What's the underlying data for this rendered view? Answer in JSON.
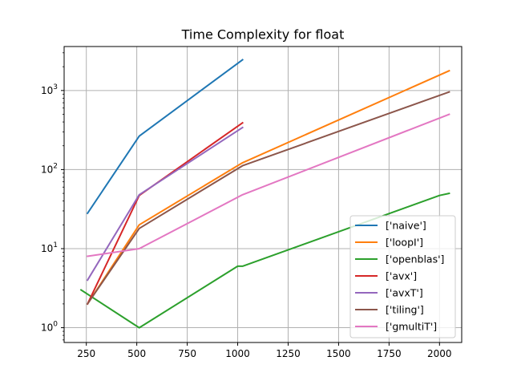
{
  "chart_data": {
    "type": "line",
    "title": "Time Complexity for float",
    "xlabel": "",
    "ylabel": "",
    "xlim": [
      140,
      2110
    ],
    "ylim": [
      0.65,
      3600
    ],
    "yscale": "log",
    "grid": true,
    "legend_position": "lower-right",
    "x_ticks": [
      250,
      500,
      750,
      1000,
      1250,
      1500,
      1750,
      2000
    ],
    "x_tick_labels": [
      "250",
      "500",
      "750",
      "1000",
      "1250",
      "1500",
      "1750",
      "2000"
    ],
    "y_ticks": [
      1,
      10,
      100,
      1000
    ],
    "series": [
      {
        "name": "['naive']",
        "color": "#1f77b4",
        "points": [
          [
            256,
            28
          ],
          [
            512,
            265
          ],
          [
            1024,
            2450
          ]
        ]
      },
      {
        "name": "['loopI']",
        "color": "#ff7f0e",
        "points": [
          [
            256,
            2
          ],
          [
            512,
            20
          ],
          [
            1024,
            122
          ],
          [
            2048,
            1780
          ]
        ]
      },
      {
        "name": "['openblas']",
        "color": "#2ca02c",
        "points": [
          [
            224,
            3
          ],
          [
            512,
            1
          ],
          [
            1000,
            6
          ],
          [
            1024,
            6
          ],
          [
            2000,
            47
          ],
          [
            2048,
            50
          ]
        ]
      },
      {
        "name": "['avx']",
        "color": "#d62728",
        "points": [
          [
            256,
            2
          ],
          [
            512,
            47
          ],
          [
            1024,
            390
          ]
        ]
      },
      {
        "name": "['avxT']",
        "color": "#9467bd",
        "points": [
          [
            256,
            4
          ],
          [
            512,
            48
          ],
          [
            1024,
            340
          ]
        ]
      },
      {
        "name": "['tiling']",
        "color": "#8c564b",
        "points": [
          [
            256,
            2
          ],
          [
            512,
            18
          ],
          [
            1024,
            112
          ],
          [
            2048,
            960
          ]
        ]
      },
      {
        "name": "['gmultiT']",
        "color": "#e377c2",
        "points": [
          [
            256,
            8
          ],
          [
            512,
            10
          ],
          [
            1024,
            48
          ],
          [
            2048,
            500
          ]
        ]
      }
    ]
  }
}
